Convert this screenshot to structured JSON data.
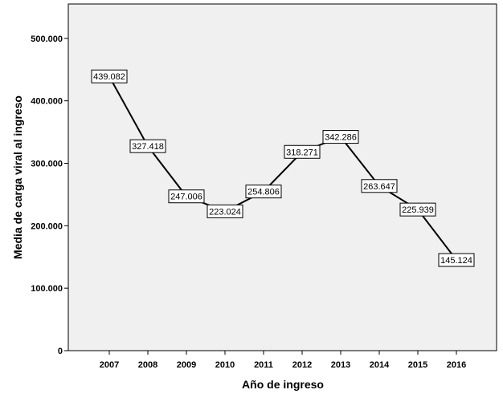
{
  "chart_data": {
    "type": "line",
    "title": "",
    "xlabel": "Año de ingreso",
    "ylabel": "Media de carga viral al ingreso",
    "categories": [
      "2007",
      "2008",
      "2009",
      "2010",
      "2011",
      "2012",
      "2013",
      "2014",
      "2015",
      "2016"
    ],
    "series": [
      {
        "values": [
          439082,
          327418,
          247006,
          223024,
          254806,
          318271,
          342286,
          263647,
          225939,
          145124
        ],
        "labels": [
          "439.082",
          "327.418",
          "247.006",
          "223.024",
          "254.806",
          "318.271",
          "342.286",
          "263.647",
          "225.939",
          "145.124"
        ]
      }
    ],
    "yticks": [
      0,
      100000,
      200000,
      300000,
      400000,
      500000
    ],
    "ytick_labels": [
      "0",
      "100.000",
      "200.000",
      "300.000",
      "400.000",
      "500.000"
    ],
    "ylim": [
      0,
      555000
    ],
    "grid": false,
    "legend": "none",
    "colors": {
      "plot_background": "#f0f0f0",
      "line": "#000000",
      "label_fill": "#ffffff"
    }
  }
}
